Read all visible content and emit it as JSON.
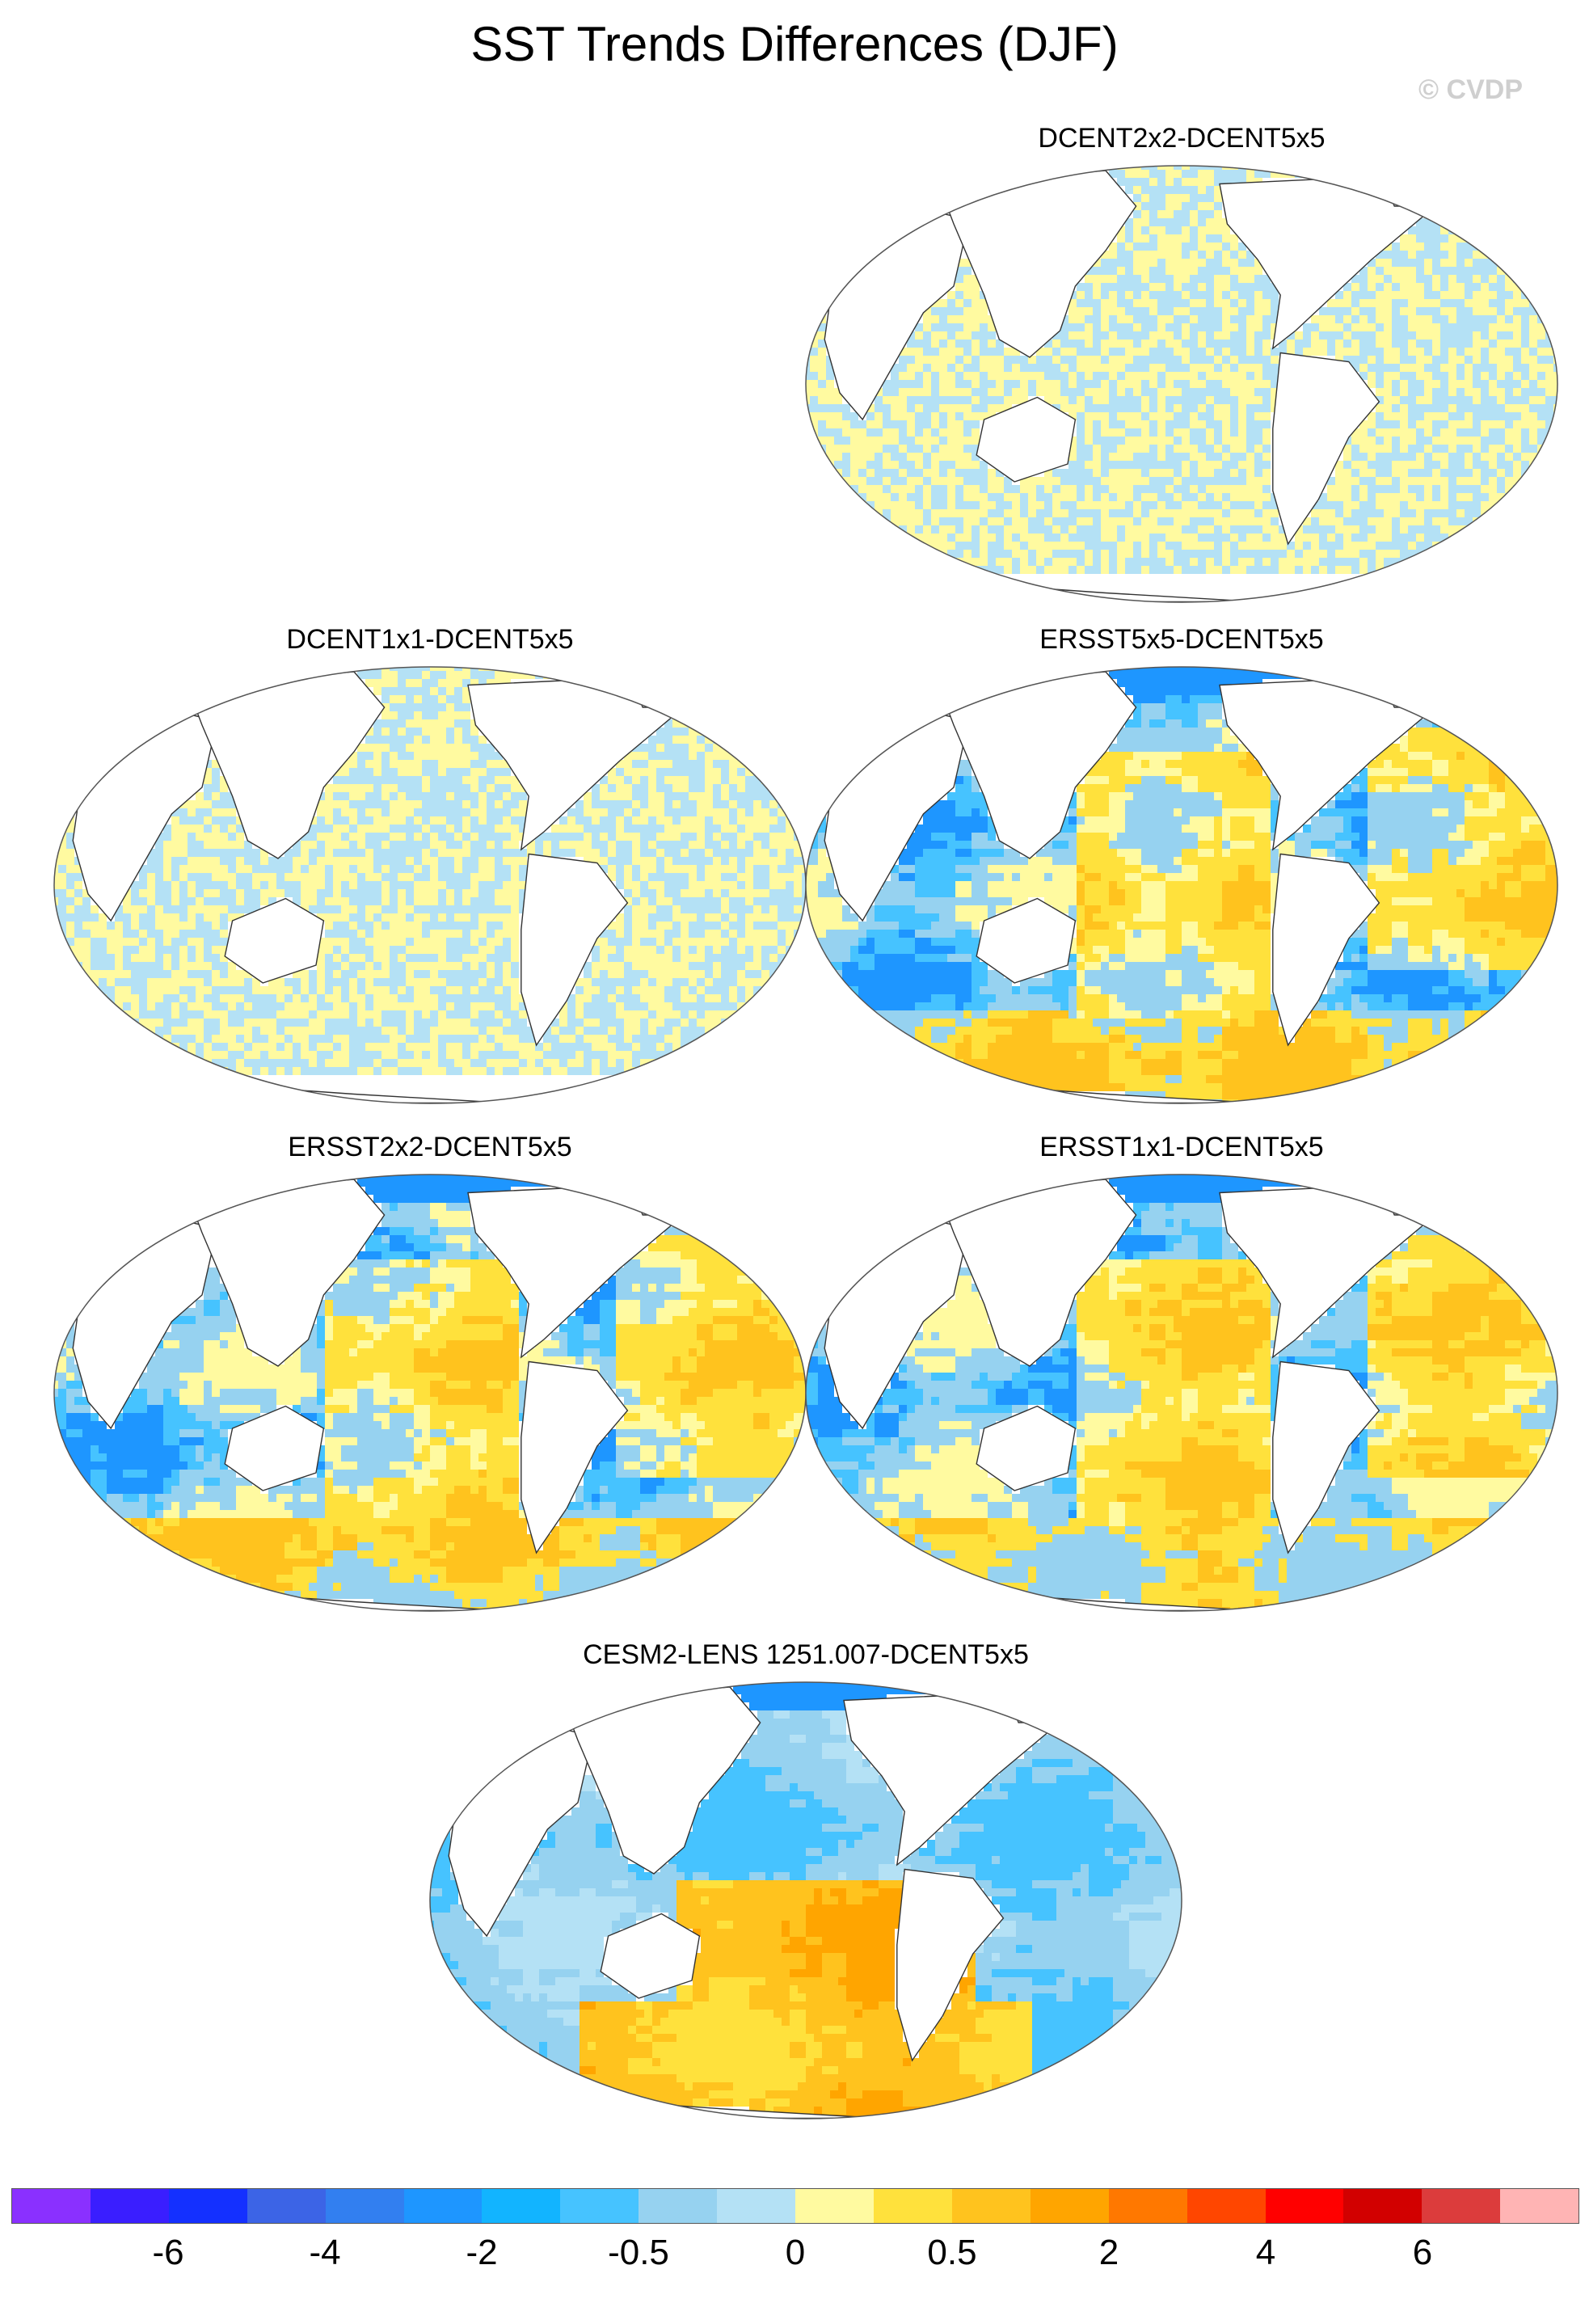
{
  "title": "SST Trends Differences (DJF)",
  "watermark": "© CVDP",
  "panels": [
    {
      "name": "DCENT2x2-DCENT5x5",
      "pattern": "checker"
    },
    {
      "name": "DCENT1x1-DCENT5x5",
      "pattern": "checker"
    },
    {
      "name": "ERSST5x5-DCENT5x5",
      "pattern": "ersst"
    },
    {
      "name": "ERSST2x2-DCENT5x5",
      "pattern": "ersst"
    },
    {
      "name": "ERSST1x1-DCENT5x5",
      "pattern": "ersst"
    },
    {
      "name": "CESM2-LENS 1251.007-DCENT5x5",
      "pattern": "cesm"
    }
  ],
  "colorbar": {
    "colors": [
      "#8a30ff",
      "#3a1eff",
      "#1430ff",
      "#3c64e6",
      "#327ff0",
      "#1e96ff",
      "#12b4ff",
      "#46c3ff",
      "#96d2f0",
      "#b4e1f5",
      "#fffaa0",
      "#ffe13c",
      "#ffc31e",
      "#ffa500",
      "#ff7800",
      "#ff4600",
      "#ff0000",
      "#d20000",
      "#dc3c3c",
      "#ffb4b4"
    ],
    "labels": [
      {
        "text": "-6",
        "boundary": 2
      },
      {
        "text": "-4",
        "boundary": 4
      },
      {
        "text": "-2",
        "boundary": 6
      },
      {
        "text": "-0.5",
        "boundary": 8
      },
      {
        "text": "0",
        "boundary": 10
      },
      {
        "text": "0.5",
        "boundary": 12
      },
      {
        "text": "2",
        "boundary": 14
      },
      {
        "text": "4",
        "boundary": 16
      },
      {
        "text": "6",
        "boundary": 18
      }
    ]
  }
}
